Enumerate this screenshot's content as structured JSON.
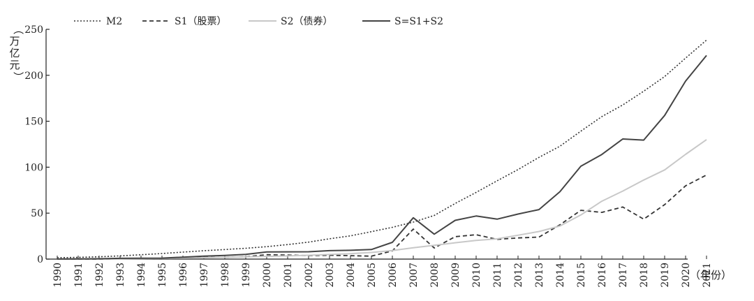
{
  "chart_data": {
    "type": "line",
    "categories": [
      "1990",
      "1991",
      "1992",
      "1993",
      "1994",
      "1995",
      "1996",
      "1997",
      "1998",
      "1999",
      "2000",
      "2001",
      "2002",
      "2003",
      "2004",
      "2005",
      "2006",
      "2007",
      "2008",
      "2009",
      "2010",
      "2011",
      "2012",
      "2013",
      "2014",
      "2015",
      "2016",
      "2017",
      "2018",
      "2019",
      "2020",
      "2021"
    ],
    "ylabel": "（万亿元）",
    "xlabel": "（年份）",
    "ylim": [
      0,
      250
    ],
    "yticks": [
      0,
      50,
      100,
      150,
      200,
      250
    ],
    "legend_position": "top-left",
    "series": [
      {
        "name": "M2",
        "style": "dotted",
        "color": "#333333",
        "values": [
          1.5,
          1.9,
          2.5,
          3.5,
          4.7,
          6.1,
          7.6,
          9.1,
          10.4,
          11.8,
          13.5,
          15.8,
          18.5,
          22.1,
          25.3,
          29.9,
          34.6,
          40.3,
          47.5,
          60.6,
          72.6,
          85.2,
          97.4,
          110.7,
          122.8,
          139.2,
          155.0,
          167.7,
          182.7,
          198.6,
          218.7,
          238.3
        ]
      },
      {
        "name": "S1（股票）",
        "style": "dashed",
        "color": "#333333",
        "values": [
          0.0,
          0.0,
          0.1,
          0.4,
          0.4,
          0.3,
          1.0,
          1.8,
          2.0,
          2.6,
          4.8,
          4.4,
          3.8,
          4.2,
          3.7,
          3.2,
          8.9,
          32.7,
          12.1,
          24.4,
          26.5,
          21.5,
          23.0,
          23.9,
          37.3,
          53.1,
          50.8,
          56.7,
          43.5,
          59.3,
          79.7,
          91.6
        ]
      },
      {
        "name": "S2（债券）",
        "style": "solid-light",
        "color": "#c8c8c8",
        "values": [
          0.1,
          0.2,
          0.3,
          0.4,
          0.6,
          0.8,
          1.1,
          1.5,
          2.0,
          2.5,
          3.0,
          3.5,
          4.2,
          5.0,
          5.9,
          7.2,
          9.3,
          12.3,
          15.0,
          17.8,
          20.4,
          22.0,
          26.0,
          30.0,
          36.0,
          48.0,
          63.0,
          74.0,
          86.0,
          97.0,
          114.0,
          130.0
        ]
      },
      {
        "name": "S=S1+S2",
        "style": "solid-dark",
        "color": "#444444",
        "values": [
          0.1,
          0.2,
          0.4,
          0.8,
          1.0,
          1.1,
          2.1,
          3.3,
          4.0,
          5.1,
          7.8,
          7.9,
          8.0,
          9.2,
          9.6,
          10.4,
          18.2,
          45.0,
          27.1,
          42.2,
          46.9,
          43.5,
          49.0,
          53.9,
          73.3,
          101.1,
          113.8,
          130.7,
          129.5,
          156.3,
          193.7,
          221.6
        ]
      }
    ]
  }
}
